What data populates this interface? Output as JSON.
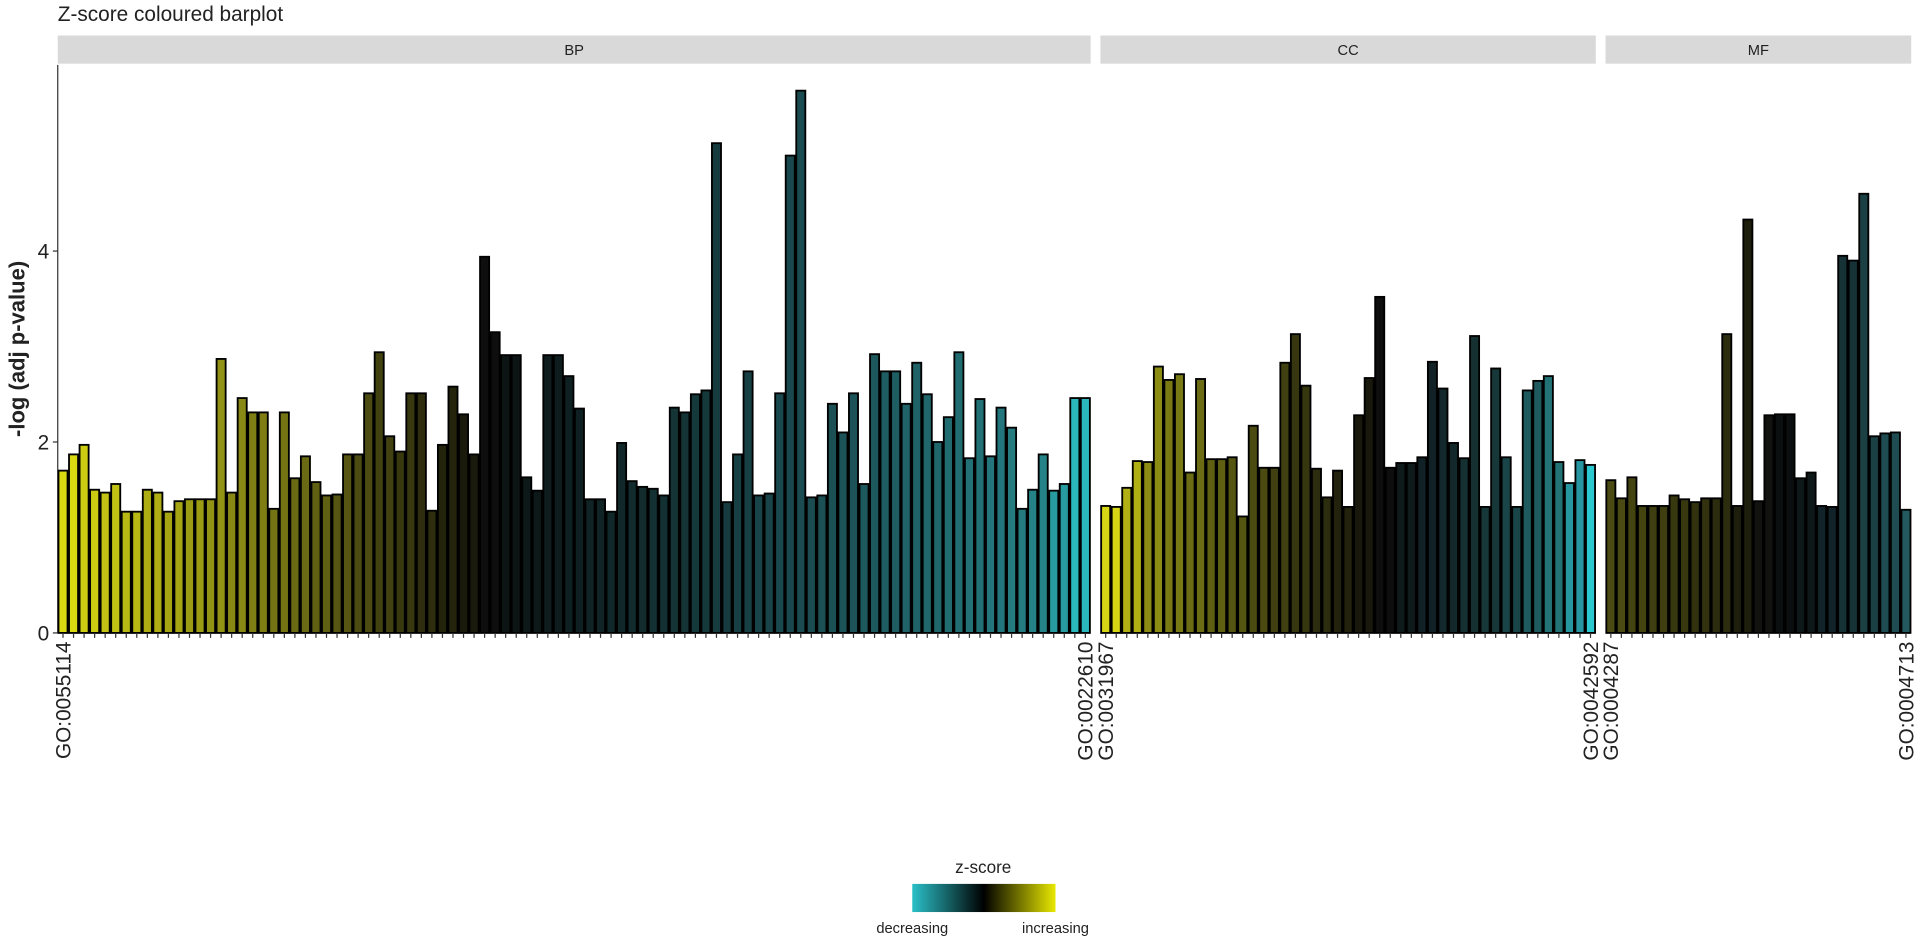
{
  "chart_data": {
    "type": "bar",
    "title": "Z-score coloured barplot",
    "y_label": "-log (adj p-value)",
    "ylim": [
      0,
      5.95
    ],
    "yticks": [
      0,
      2,
      4
    ],
    "facets": [
      {
        "name": "BP",
        "categories": [
          "GO:0055114",
          null,
          null,
          null,
          null,
          null,
          null,
          null,
          null,
          null,
          null,
          null,
          null,
          null,
          null,
          null,
          null,
          null,
          null,
          null,
          null,
          null,
          null,
          null,
          null,
          null,
          null,
          null,
          null,
          null,
          null,
          null,
          null,
          null,
          null,
          null,
          null,
          null,
          null,
          null,
          null,
          null,
          null,
          null,
          null,
          null,
          null,
          null,
          null,
          null,
          null,
          null,
          null,
          null,
          null,
          null,
          null,
          null,
          null,
          null,
          null,
          null,
          null,
          null,
          null,
          null,
          null,
          null,
          null,
          null,
          null,
          null,
          null,
          null,
          null,
          null,
          null,
          null,
          null,
          null,
          null,
          null,
          null,
          null,
          null,
          null,
          null,
          null,
          null,
          null,
          null,
          null,
          null,
          null,
          null,
          null,
          null,
          "GO:0022610"
        ],
        "values": [
          1.7,
          1.87,
          1.97,
          1.5,
          1.47,
          1.56,
          1.27,
          1.27,
          1.5,
          1.47,
          1.27,
          1.38,
          1.4,
          1.4,
          1.4,
          2.87,
          1.47,
          2.46,
          2.31,
          2.31,
          1.3,
          2.31,
          1.62,
          1.85,
          1.58,
          1.44,
          1.45,
          1.87,
          1.87,
          2.51,
          2.94,
          2.06,
          1.9,
          2.51,
          2.51,
          1.28,
          1.97,
          2.58,
          2.29,
          1.87,
          3.94,
          3.15,
          2.91,
          2.91,
          1.63,
          1.49,
          2.91,
          2.91,
          2.69,
          2.35,
          1.4,
          1.4,
          1.27,
          1.99,
          1.59,
          1.53,
          1.51,
          1.44,
          2.36,
          2.31,
          2.5,
          2.54,
          5.13,
          1.37,
          1.87,
          2.74,
          1.44,
          1.46,
          2.51,
          5.0,
          5.68,
          1.42,
          1.44,
          2.4,
          2.1,
          2.51,
          1.56,
          2.92,
          2.74,
          2.74,
          2.4,
          2.83,
          2.5,
          2.0,
          2.26,
          2.94,
          1.83,
          2.45,
          1.85,
          2.36,
          2.15,
          1.3,
          1.5,
          1.87,
          1.49,
          1.56,
          2.46,
          2.46
        ],
        "colors": [
          "#d9d912",
          "#d9d912",
          "#cccc12",
          "#cccc12",
          "#c2c214",
          "#c2c214",
          "#b8b814",
          "#b8b814",
          "#aeae14",
          "#aeae14",
          "#a5a514",
          "#a5a514",
          "#9c9c14",
          "#9c9c14",
          "#929214",
          "#929214",
          "#888814",
          "#888814",
          "#7e7e14",
          "#7e7e14",
          "#747414",
          "#747414",
          "#6a6a14",
          "#6a6a14",
          "#606012",
          "#606012",
          "#565612",
          "#565612",
          "#4c4c12",
          "#4c4c12",
          "#424210",
          "#424210",
          "#38380f",
          "#38380f",
          "#2e2e0e",
          "#2e2e0e",
          "#24240d",
          "#24240d",
          "#1a1a0c",
          "#1a1a0c",
          "#0e0e0e",
          "#0e0e0e",
          "#0c1414",
          "#0c1414",
          "#0d1818",
          "#0d1818",
          "#0e1c1d",
          "#0e1c1d",
          "#0f2022",
          "#0f2022",
          "#102426",
          "#102426",
          "#11282a",
          "#11282a",
          "#122c2e",
          "#122c2e",
          "#133032",
          "#133032",
          "#143436",
          "#143436",
          "#15383a",
          "#15383a",
          "#163c3f",
          "#163c3f",
          "#174044",
          "#174044",
          "#184449",
          "#184449",
          "#19484e",
          "#19484e",
          "#1a4c52",
          "#1a4c52",
          "#1b5055",
          "#1b5055",
          "#1c5358",
          "#1c5358",
          "#1d585d",
          "#1d585d",
          "#1e5d62",
          "#1e5d62",
          "#1f6267",
          "#1f6267",
          "#20676c",
          "#20676c",
          "#216c71",
          "#216c71",
          "#227176",
          "#227176",
          "#23767b",
          "#23767b",
          "#247b80",
          "#247b80",
          "#258388",
          "#258388",
          "#279ba0",
          "#279ba0",
          "#2ab8bd",
          "#2ab8bd"
        ]
      },
      {
        "name": "CC",
        "categories": [
          "GO:0031967",
          null,
          null,
          null,
          null,
          null,
          null,
          null,
          null,
          null,
          null,
          null,
          null,
          null,
          null,
          null,
          null,
          null,
          null,
          null,
          null,
          null,
          null,
          null,
          null,
          null,
          null,
          null,
          null,
          null,
          null,
          null,
          null,
          null,
          null,
          null,
          null,
          null,
          null,
          null,
          null,
          null,
          null,
          null,
          null,
          null,
          "GO:0042592"
        ],
        "values": [
          1.33,
          1.32,
          1.52,
          1.8,
          1.79,
          2.79,
          2.65,
          2.71,
          1.68,
          2.66,
          1.82,
          1.82,
          1.84,
          1.22,
          2.17,
          1.73,
          1.73,
          2.83,
          3.13,
          2.59,
          1.72,
          1.42,
          1.7,
          1.32,
          2.28,
          2.67,
          3.52,
          1.73,
          1.78,
          1.78,
          1.84,
          2.84,
          2.56,
          1.99,
          1.83,
          3.11,
          1.32,
          2.77,
          1.84,
          1.32,
          2.54,
          2.64,
          2.69,
          1.79,
          1.57,
          1.81,
          1.76
        ],
        "colors": [
          "#d6d614",
          "#d6d614",
          "#b0b014",
          "#b0b014",
          "#8c8c14",
          "#8c8c14",
          "#7a7a14",
          "#7a7a14",
          "#6c6c14",
          "#6c6c14",
          "#606012",
          "#606012",
          "#555512",
          "#555512",
          "#4a4a11",
          "#4a4a11",
          "#404010",
          "#404010",
          "#36360f",
          "#36360f",
          "#2c2c0e",
          "#2c2c0e",
          "#22220d",
          "#22220d",
          "#18180c",
          "#18180c",
          "#0e0e0e",
          "#0e0e0e",
          "#0f1a1b",
          "#0f1a1b",
          "#112125",
          "#112125",
          "#13282a",
          "#13282a",
          "#153030",
          "#153030",
          "#173838",
          "#173838",
          "#1a4548",
          "#1a4548",
          "#1e5a5e",
          "#1e5a5e",
          "#227276",
          "#227276",
          "#2896a0",
          "#2896a0",
          "#2cc8d0"
        ]
      },
      {
        "name": "MF",
        "categories": [
          "GO:0004287",
          null,
          null,
          null,
          null,
          null,
          null,
          null,
          null,
          null,
          null,
          null,
          null,
          null,
          null,
          null,
          null,
          null,
          null,
          null,
          null,
          null,
          null,
          null,
          null,
          null,
          null,
          null,
          "GO:0004713"
        ],
        "values": [
          1.6,
          1.41,
          1.63,
          1.33,
          1.33,
          1.33,
          1.44,
          1.4,
          1.37,
          1.41,
          1.41,
          3.13,
          1.33,
          4.33,
          1.38,
          2.28,
          2.29,
          2.29,
          1.62,
          1.68,
          1.33,
          1.32,
          3.95,
          3.9,
          4.6,
          2.06,
          2.09,
          2.1,
          1.29
        ],
        "colors": [
          "#4a4a12",
          "#4a4a12",
          "#444411",
          "#444411",
          "#3e3e10",
          "#3e3e10",
          "#38380f",
          "#38380f",
          "#32320f",
          "#32320f",
          "#2c2c0e",
          "#2c2c0e",
          "#1e1e0c",
          "#1e1e0c",
          "#121210",
          "#121210",
          "#0c0f0f",
          "#0c0f0f",
          "#0f1819",
          "#0f1819",
          "#12242a",
          "#12242a",
          "#163236",
          "#163236",
          "#1a4044",
          "#1a4044",
          "#1e4c52",
          "#1e4c52",
          "#225a60"
        ]
      }
    ],
    "legend": {
      "title": "z-score",
      "low": "decreasing",
      "high": "increasing",
      "colors": [
        "#2ac0c8",
        "#000000",
        "#e8e800"
      ]
    }
  }
}
